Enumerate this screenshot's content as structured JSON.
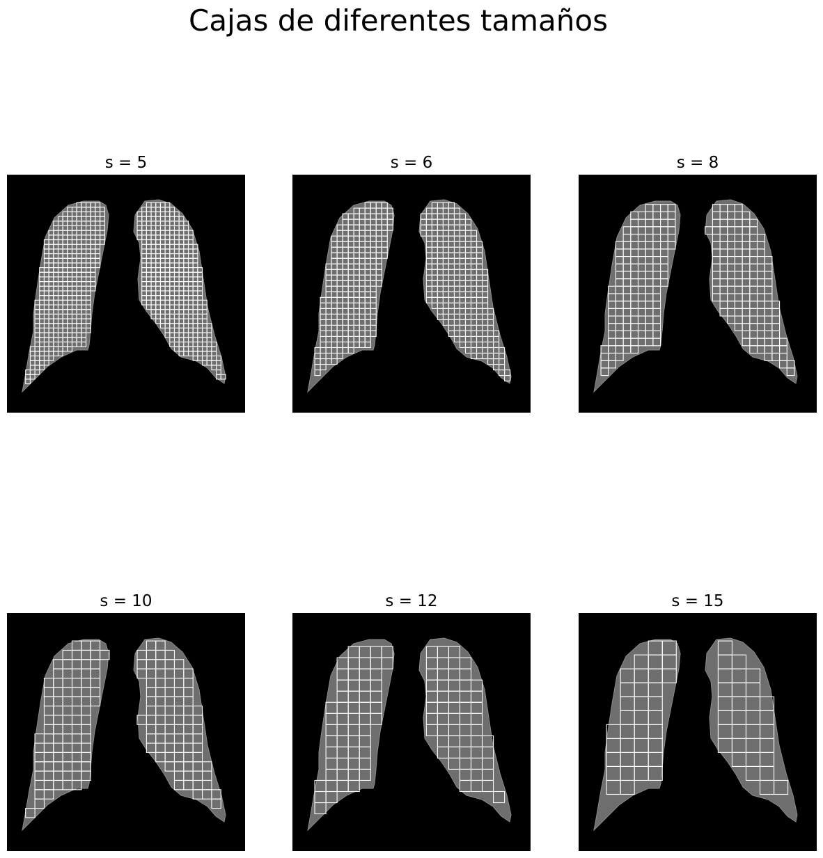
{
  "figure": {
    "title": "Cajas de diferentes tamaños",
    "panels": [
      {
        "id": "s5",
        "title": "s = 5",
        "box_size": 5
      },
      {
        "id": "s6",
        "title": "s = 6",
        "box_size": 6
      },
      {
        "id": "s8",
        "title": "s = 8",
        "box_size": 8
      },
      {
        "id": "s10",
        "title": "s = 10",
        "box_size": 10
      },
      {
        "id": "s12",
        "title": "s = 12",
        "box_size": 12
      },
      {
        "id": "s15",
        "title": "s = 15",
        "box_size": 15
      }
    ],
    "colors": {
      "background": "#000000",
      "lung": "#6e6e6e",
      "box_edge": "#ffffff"
    }
  }
}
